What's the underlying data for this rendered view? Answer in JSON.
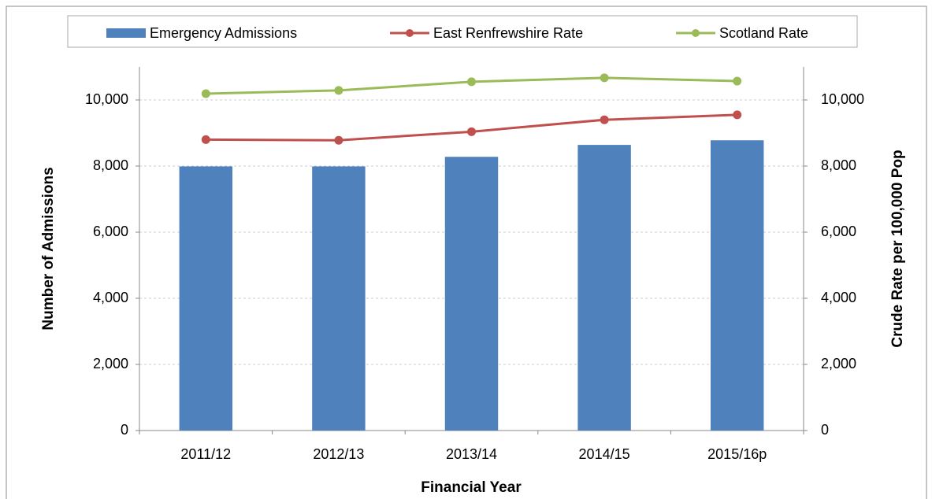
{
  "chart_data": {
    "type": "bar-line",
    "categories": [
      "2011/12",
      "2012/13",
      "2013/14",
      "2014/15",
      "2015/16p"
    ],
    "series": [
      {
        "name": "Emergency Admissions",
        "type": "bar",
        "color": "#4f81bd",
        "values": [
          7990,
          7990,
          8280,
          8640,
          8780
        ]
      },
      {
        "name": "East Renfrewshire Rate",
        "type": "line",
        "axis": "y2",
        "color": "#c0504d",
        "values": [
          8800,
          8780,
          9040,
          9400,
          9550
        ]
      },
      {
        "name": "Scotland Rate",
        "type": "line",
        "axis": "y2",
        "color": "#9bbb59",
        "values": [
          10190,
          10290,
          10550,
          10670,
          10570
        ]
      }
    ],
    "x_label": "Financial Year",
    "y_label": "Number of Admissions",
    "y2_label": "Crude Rate per 100,000 Pop",
    "ylim": [
      0,
      11000
    ],
    "yticks": [
      0,
      {
        "value": 2000,
        "label": "2,000"
      },
      {
        "value": 4000,
        "label": "4,000"
      },
      {
        "value": 6000,
        "label": "6,000"
      },
      {
        "value": 8000,
        "label": "8,000"
      },
      {
        "value": 10000,
        "label": "10,000"
      }
    ],
    "y2lim": [
      0,
      11000
    ],
    "y2ticks": [
      0,
      {
        "value": 2000,
        "label": "2,000"
      },
      {
        "value": 4000,
        "label": "4,000"
      },
      {
        "value": 6000,
        "label": "6,000"
      },
      {
        "value": 8000,
        "label": "8,000"
      },
      {
        "value": 10000,
        "label": "10,000"
      }
    ],
    "grid": true,
    "legend": "top"
  }
}
